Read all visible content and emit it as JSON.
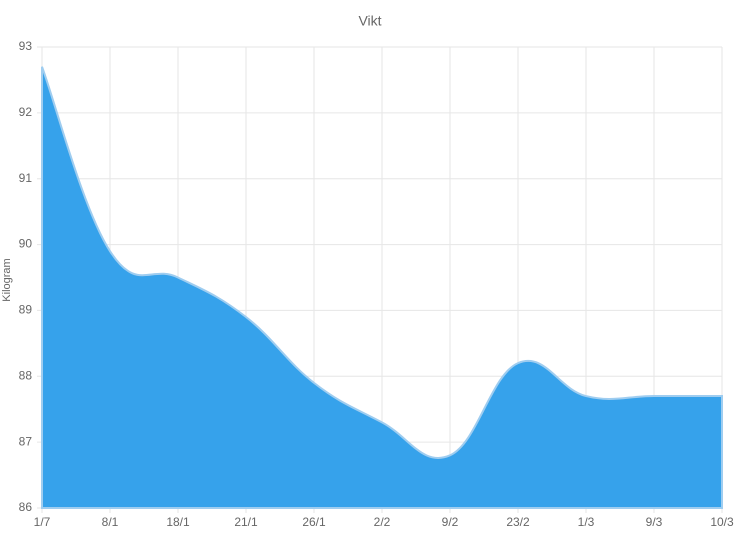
{
  "chart_data": {
    "type": "area",
    "title": "Vikt",
    "y_label": "Kilogram",
    "categories": [
      "1/7",
      "8/1",
      "18/1",
      "21/1",
      "26/1",
      "2/2",
      "9/2",
      "23/2",
      "1/3",
      "9/3",
      "10/3"
    ],
    "values": [
      92.7,
      89.9,
      89.5,
      88.9,
      87.9,
      87.3,
      86.8,
      88.2,
      87.7,
      87.7,
      87.7
    ],
    "color": "#36a2eb",
    "ylim": [
      86,
      93
    ],
    "yticks": [
      86,
      87,
      88,
      89,
      90,
      91,
      92,
      93
    ],
    "grid": true
  }
}
